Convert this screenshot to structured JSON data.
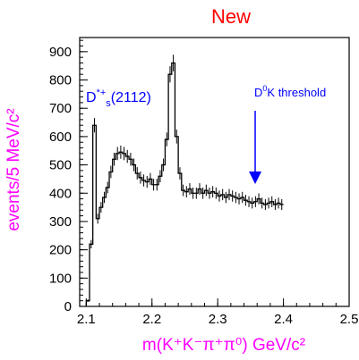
{
  "chart_data": {
    "type": "histogram",
    "title": "New",
    "xlabel": "m(K⁺K⁻π⁺π⁰) GeV/c²",
    "ylabel": "events/5 MeV/c²",
    "xlim": [
      2.09,
      2.5
    ],
    "ylim": [
      0,
      950
    ],
    "xticks": [
      2.1,
      2.2,
      2.3,
      2.4,
      2.5
    ],
    "yticks": [
      0,
      100,
      200,
      300,
      400,
      500,
      600,
      700,
      800,
      900
    ],
    "x_tick_labels": [
      "2.1",
      "2.2",
      "2.3",
      "2.4",
      "2.5"
    ],
    "y_tick_labels": [
      "0",
      "100",
      "200",
      "300",
      "400",
      "500",
      "600",
      "700",
      "800",
      "900"
    ],
    "grid": false,
    "bin_width": 0.005,
    "bin_start": 2.1,
    "values": [
      20,
      220,
      640,
      310,
      350,
      385,
      420,
      475,
      520,
      540,
      545,
      540,
      530,
      520,
      500,
      470,
      455,
      445,
      440,
      450,
      430,
      430,
      460,
      500,
      590,
      820,
      860,
      600,
      470,
      410,
      405,
      415,
      400,
      400,
      415,
      400,
      410,
      400,
      405,
      400,
      390,
      395,
      385,
      395,
      390,
      385,
      380,
      385,
      375,
      370,
      365,
      370,
      380,
      365,
      360,
      365,
      370,
      360,
      365,
      360
    ],
    "annotations": {
      "peak_label_main": "D",
      "peak_label_sup": "*+",
      "peak_label_sub": "s",
      "peak_label_mass": "(2112)",
      "threshold_label_main": "D",
      "threshold_label_sup": "0",
      "threshold_label_rest": "K threshold",
      "threshold_x": 2.357
    },
    "colors": {
      "title": "#ff0000",
      "axis_label": "#ff00ff",
      "annotation": "#0000ff",
      "histogram": "#000000"
    }
  }
}
